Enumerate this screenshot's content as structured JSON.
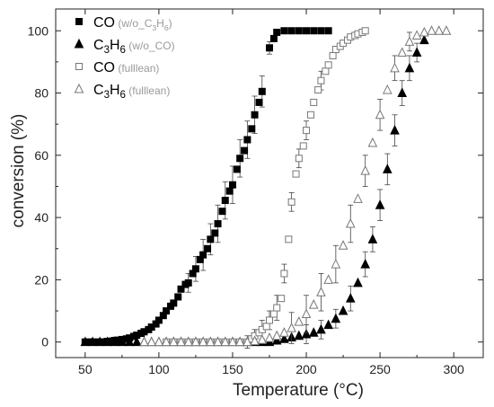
{
  "chart_data": {
    "type": "scatter",
    "title": "",
    "xlabel": "Temperature (°C)",
    "ylabel": "conversion (%)",
    "xlim": [
      30,
      320
    ],
    "ylim": [
      -5,
      107
    ],
    "xticks": [
      50,
      100,
      150,
      200,
      250,
      300
    ],
    "yticks": [
      0,
      20,
      40,
      60,
      80,
      100
    ],
    "grid": false,
    "legend_position": "top-left",
    "series": [
      {
        "id": "co_wo",
        "marker": "square",
        "filled": true,
        "name_main": "CO",
        "name_sub": "(w/o_C3H6)",
        "points": [
          [
            50,
            0
          ],
          [
            52,
            0
          ],
          [
            55,
            0
          ],
          [
            58,
            0
          ],
          [
            60,
            0
          ],
          [
            62,
            0
          ],
          [
            65,
            0.2
          ],
          [
            68,
            0.3
          ],
          [
            70,
            0.5
          ],
          [
            72,
            0.6
          ],
          [
            75,
            0.8
          ],
          [
            78,
            1.0
          ],
          [
            80,
            1.3
          ],
          [
            83,
            1.8
          ],
          [
            85,
            2.2
          ],
          [
            88,
            2.8
          ],
          [
            90,
            3.3
          ],
          [
            93,
            4.0
          ],
          [
            95,
            4.8
          ],
          [
            98,
            5.8
          ],
          [
            100,
            7.0
          ],
          [
            103,
            8.5
          ],
          [
            105,
            10.0
          ],
          [
            108,
            11.5
          ],
          [
            110,
            12.5
          ],
          [
            113,
            14.5
          ],
          [
            115,
            17.0
          ],
          [
            118,
            18.5
          ],
          [
            120,
            19.0
          ],
          [
            123,
            22.0
          ],
          [
            125,
            23.5
          ],
          [
            128,
            26.5
          ],
          [
            130,
            28.0
          ],
          [
            133,
            30.0
          ],
          [
            135,
            33.0
          ],
          [
            138,
            35.0
          ],
          [
            140,
            38.0
          ],
          [
            143,
            42.0
          ],
          [
            145,
            45.5
          ],
          [
            148,
            48.5
          ],
          [
            150,
            50.5
          ],
          [
            153,
            55.5
          ],
          [
            155,
            59.0
          ],
          [
            158,
            61.5
          ],
          [
            160,
            65.0
          ],
          [
            163,
            68.5
          ],
          [
            165,
            73.0
          ],
          [
            168,
            77.0
          ],
          [
            170,
            80.5
          ],
          [
            175,
            94.5
          ],
          [
            178,
            97.5
          ],
          [
            180,
            99.5
          ],
          [
            185,
            100
          ],
          [
            190,
            100
          ],
          [
            195,
            100
          ],
          [
            200,
            100
          ],
          [
            205,
            100
          ],
          [
            210,
            100
          ],
          [
            215,
            100
          ]
        ],
        "errors": [
          [
            120,
            3
          ],
          [
            125,
            4
          ],
          [
            130,
            5
          ],
          [
            135,
            5
          ],
          [
            140,
            6
          ],
          [
            145,
            6
          ],
          [
            150,
            6
          ],
          [
            155,
            6
          ],
          [
            160,
            6
          ],
          [
            165,
            6
          ],
          [
            170,
            5
          ],
          [
            175,
            2
          ]
        ]
      },
      {
        "id": "c3h6_wo",
        "marker": "triangle",
        "filled": true,
        "name_main": "C3H6",
        "name_sub": "(w/o_CO)",
        "points": [
          [
            50,
            0
          ],
          [
            55,
            0
          ],
          [
            60,
            0
          ],
          [
            65,
            0
          ],
          [
            70,
            0
          ],
          [
            75,
            0
          ],
          [
            80,
            0
          ],
          [
            85,
            0
          ],
          [
            90,
            0
          ],
          [
            95,
            0
          ],
          [
            100,
            0
          ],
          [
            105,
            0
          ],
          [
            110,
            0
          ],
          [
            115,
            0
          ],
          [
            120,
            0
          ],
          [
            125,
            0
          ],
          [
            130,
            0
          ],
          [
            135,
            0
          ],
          [
            140,
            0
          ],
          [
            145,
            0
          ],
          [
            150,
            0
          ],
          [
            155,
            0
          ],
          [
            160,
            0
          ],
          [
            165,
            0
          ],
          [
            170,
            0
          ],
          [
            175,
            0
          ],
          [
            180,
            0.5
          ],
          [
            185,
            1.0
          ],
          [
            190,
            1.5
          ],
          [
            195,
            2.0
          ],
          [
            200,
            2.5
          ],
          [
            205,
            3.0
          ],
          [
            210,
            4.0
          ],
          [
            215,
            5.5
          ],
          [
            220,
            7.5
          ],
          [
            225,
            10.0
          ],
          [
            230,
            14.0
          ],
          [
            235,
            19.0
          ],
          [
            240,
            25.0
          ],
          [
            245,
            33.0
          ],
          [
            250,
            44.0
          ],
          [
            255,
            55.5
          ],
          [
            260,
            68.0
          ],
          [
            265,
            80.0
          ],
          [
            270,
            88.0
          ],
          [
            275,
            93.0
          ],
          [
            280,
            97.0
          ]
        ],
        "errors": [
          [
            200,
            3
          ],
          [
            210,
            3
          ],
          [
            220,
            3
          ],
          [
            230,
            4
          ],
          [
            240,
            4
          ],
          [
            245,
            4
          ],
          [
            250,
            5
          ],
          [
            255,
            5
          ],
          [
            260,
            5
          ],
          [
            265,
            4
          ],
          [
            270,
            4
          ],
          [
            275,
            3
          ]
        ]
      },
      {
        "id": "co_full",
        "marker": "square",
        "filled": false,
        "name_main": "CO",
        "name_sub": "(full lean)",
        "points": [
          [
            105,
            0
          ],
          [
            110,
            0
          ],
          [
            115,
            0
          ],
          [
            120,
            0
          ],
          [
            125,
            0
          ],
          [
            130,
            0
          ],
          [
            135,
            0
          ],
          [
            140,
            0
          ],
          [
            145,
            0
          ],
          [
            150,
            0
          ],
          [
            155,
            0
          ],
          [
            160,
            0
          ],
          [
            163,
            1
          ],
          [
            165,
            2
          ],
          [
            168,
            3
          ],
          [
            170,
            4
          ],
          [
            173,
            5
          ],
          [
            175,
            7
          ],
          [
            178,
            9
          ],
          [
            180,
            11
          ],
          [
            183,
            14
          ],
          [
            185,
            22
          ],
          [
            188,
            33
          ],
          [
            190,
            45
          ],
          [
            193,
            54
          ],
          [
            195,
            59
          ],
          [
            198,
            63
          ],
          [
            200,
            68
          ],
          [
            203,
            73
          ],
          [
            205,
            77
          ],
          [
            208,
            81
          ],
          [
            210,
            84
          ],
          [
            213,
            87
          ],
          [
            215,
            89
          ],
          [
            218,
            92
          ],
          [
            220,
            94
          ],
          [
            223,
            95
          ],
          [
            225,
            96
          ],
          [
            228,
            97
          ],
          [
            230,
            98
          ],
          [
            233,
            98.5
          ],
          [
            235,
            99
          ],
          [
            238,
            99.5
          ],
          [
            240,
            100
          ]
        ],
        "errors": [
          [
            160,
            2
          ],
          [
            165,
            2
          ],
          [
            170,
            3
          ],
          [
            175,
            3
          ],
          [
            180,
            4
          ],
          [
            185,
            3
          ],
          [
            190,
            3
          ],
          [
            195,
            3
          ],
          [
            200,
            3
          ],
          [
            210,
            3
          ]
        ]
      },
      {
        "id": "c3h6_full",
        "marker": "triangle",
        "filled": false,
        "name_main": "C3H6",
        "name_sub": "(full lean)",
        "points": [
          [
            90,
            0
          ],
          [
            95,
            0
          ],
          [
            100,
            0
          ],
          [
            105,
            0
          ],
          [
            110,
            0
          ],
          [
            115,
            0
          ],
          [
            120,
            0
          ],
          [
            125,
            0
          ],
          [
            130,
            0
          ],
          [
            135,
            0
          ],
          [
            140,
            0
          ],
          [
            145,
            0
          ],
          [
            150,
            0
          ],
          [
            155,
            0
          ],
          [
            160,
            0
          ],
          [
            165,
            0.3
          ],
          [
            170,
            0.7
          ],
          [
            175,
            1.3
          ],
          [
            180,
            2.0
          ],
          [
            185,
            3.0
          ],
          [
            190,
            4.5
          ],
          [
            195,
            6.5
          ],
          [
            200,
            9.0
          ],
          [
            205,
            12.0
          ],
          [
            210,
            16.0
          ],
          [
            215,
            20.0
          ],
          [
            220,
            25.0
          ],
          [
            225,
            31.0
          ],
          [
            230,
            38.0
          ],
          [
            235,
            46.0
          ],
          [
            240,
            55.0
          ],
          [
            245,
            64.0
          ],
          [
            250,
            73.0
          ],
          [
            255,
            81.0
          ],
          [
            260,
            88.0
          ],
          [
            265,
            93.0
          ],
          [
            270,
            96.5
          ],
          [
            275,
            98.5
          ],
          [
            280,
            99.5
          ],
          [
            285,
            100
          ],
          [
            290,
            100
          ],
          [
            295,
            100
          ]
        ],
        "errors": [
          [
            190,
            5
          ],
          [
            200,
            6
          ],
          [
            210,
            6
          ],
          [
            220,
            6
          ],
          [
            230,
            6
          ],
          [
            240,
            5
          ],
          [
            250,
            5
          ],
          [
            260,
            4
          ],
          [
            270,
            3
          ]
        ]
      }
    ]
  }
}
